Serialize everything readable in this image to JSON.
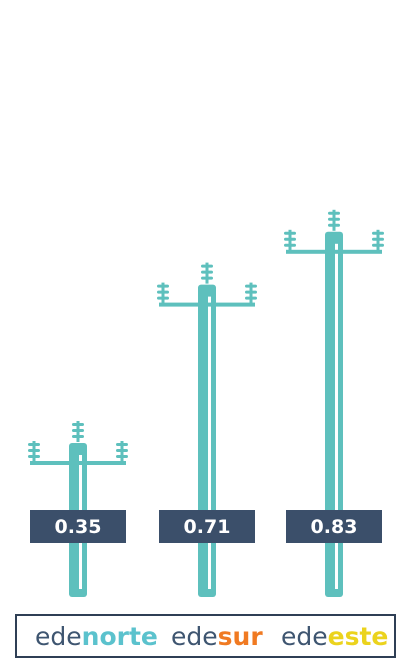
{
  "chart_data": {
    "type": "bar",
    "categories": [
      "edenorte",
      "edesur",
      "edeeste"
    ],
    "values": [
      0.35,
      0.71,
      0.83
    ],
    "value_labels": [
      "0.35",
      "0.71",
      "0.83"
    ],
    "title": "",
    "xlabel": "",
    "ylabel": "",
    "ylim": [
      0,
      1.3
    ],
    "grid": false,
    "legend": "bottom"
  },
  "legend": {
    "items": [
      {
        "prefix": "ede",
        "suffix": "norte",
        "color": "#5bc2cd"
      },
      {
        "prefix": "ede",
        "suffix": "sur",
        "color": "#f07a22"
      },
      {
        "prefix": "ede",
        "suffix": "este",
        "color": "#ebd31d"
      }
    ]
  },
  "colors": {
    "pole": "#5ec0bd",
    "pole_highlight": "#ffffff",
    "label_bg": "#3b4f6a",
    "legend_prefix": "#3e5570",
    "legend_border": "#2f3f55"
  }
}
